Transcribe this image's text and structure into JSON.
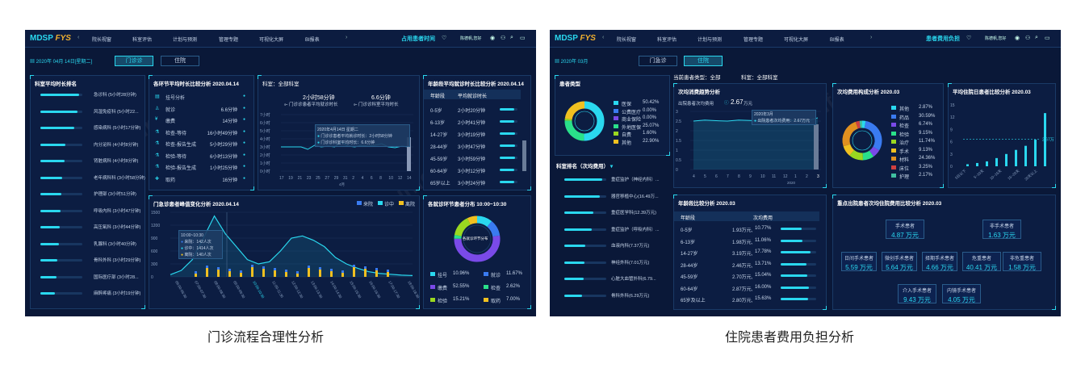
{
  "captions": {
    "left": "门诊流程合理性分析",
    "right": "住院患者费用负担分析"
  },
  "logo": {
    "main": "MDSP",
    "accent": "FYS"
  },
  "nav": [
    "院长视窗",
    "科室评估",
    "计划与预测",
    "管理专题",
    "可视化大屏",
    "BI报表"
  ],
  "left": {
    "top_right_title": "占用患者时间",
    "user_label": "陈德帆,您好",
    "date": "2020年 04月 14日[星期二]",
    "tabs": [
      "门诊诊",
      "住院"
    ],
    "dept_title": "科室平均时长排名",
    "depts": [
      {
        "name": "急诊科 (5小时28分钟)",
        "v": 0.92
      },
      {
        "name": "风湿免疫科 (5小时22...",
        "v": 0.88
      },
      {
        "name": "感染病科 (5小时17分钟)",
        "v": 0.8
      },
      {
        "name": "内分泌科 (4小时8分钟)",
        "v": 0.6
      },
      {
        "name": "肾脏病科 (4小时8分钟)",
        "v": 0.58
      },
      {
        "name": "老年病科科 (3小时58分钟)",
        "v": 0.52
      },
      {
        "name": "护理部 (3小时51分钟)",
        "v": 0.5
      },
      {
        "name": "呼吸内科 (3小时47分钟)",
        "v": 0.48
      },
      {
        "name": "高压氧科 (3小时44分钟)",
        "v": 0.46
      },
      {
        "name": "乳腺科 (3小时40分钟)",
        "v": 0.44
      },
      {
        "name": "骨科外科 (3小时29分钟)",
        "v": 0.4
      },
      {
        "name": "国际医疗部 (3小时28...",
        "v": 0.38
      },
      {
        "name": "麻醉疼痛 (3小时19分钟)",
        "v": 0.34
      }
    ],
    "step_title": "各环节平均时长比较分析 2020.04.14",
    "steps": [
      {
        "name": "挂号分析",
        "val": ""
      },
      {
        "name": "就诊",
        "val": "6.6分钟"
      },
      {
        "name": "缴费",
        "val": "14分钟"
      },
      {
        "name": "检查-等待",
        "val": "16小时49分钟"
      },
      {
        "name": "检查-报告生成",
        "val": "5小时29分钟"
      },
      {
        "name": "检验-等待",
        "val": "6小时13分钟"
      },
      {
        "name": "检验-报告生成",
        "val": "1小时25分钟"
      },
      {
        "name": "取药",
        "val": "16分钟"
      }
    ],
    "dept_label": "科室：全部科室",
    "kpi1": {
      "value": "2小时58分钟",
      "label": "门诊诊患者平均就诊时长"
    },
    "kpi2": {
      "value": "6.6分钟",
      "label": "门诊诊科室平均时长"
    },
    "tooltip1": {
      "date": "2020年4月14日 星期二",
      "l1": "门诊诊患者平均就诊时长：2小时58分钟",
      "l2": "门诊诊科室平均时长：6.6分钟"
    },
    "trend_yticks": [
      "7小时",
      "6小时",
      "5小时",
      "4小时",
      "3小时",
      "2小时",
      "1小时",
      "0小时"
    ],
    "trend_xticks": [
      "17",
      "19",
      "21",
      "23",
      "25",
      "27",
      "29",
      "31",
      "2",
      "4",
      "6",
      "8",
      "10",
      "12",
      "14"
    ],
    "trend_xsub": "4月",
    "age_title": "年龄段平均就诊时长比较分析 2020.04.14",
    "age_headers": [
      "年龄段",
      "平均就诊时长"
    ],
    "ages": [
      {
        "a": "0-5岁",
        "t": "2小时20分钟",
        "v": 0.8
      },
      {
        "a": "6-13岁",
        "t": "2小时41分钟",
        "v": 0.82
      },
      {
        "a": "14-27岁",
        "t": "3小时19分钟",
        "v": 0.85
      },
      {
        "a": "28-44岁",
        "t": "3小时47分钟",
        "v": 0.87
      },
      {
        "a": "45-59岁",
        "t": "3小时59分钟",
        "v": 0.88
      },
      {
        "a": "60-64岁",
        "t": "3小时12分钟",
        "v": 0.82
      },
      {
        "a": "65岁以上",
        "t": "3小时24分钟",
        "v": 0.83
      }
    ],
    "peak_title": "门急诊患者峰值变化分析 2020.04.14",
    "peak_legend": [
      "来院",
      "诊中",
      "离院"
    ],
    "peak_yticks": [
      "1500",
      "1200",
      "900",
      "600",
      "300",
      "0"
    ],
    "peak_xticks": [
      "06:00-06:30",
      "07:00-07:30",
      "08:00-08:30",
      "09:00-09:30",
      "10:00-10:30",
      "11:00-11:30",
      "12:00-12:30",
      "13:00-13:30",
      "14:00-14:30",
      "15:00-15:30",
      "16:00-16:30",
      "17:00-17:30",
      "18:00-18:30"
    ],
    "tooltip2": {
      "t": "10:00~10:30",
      "a": "来院：142人次",
      "b": "诊中：1414人次",
      "c": "离院：140人次"
    },
    "dist_title": "各就诊环节患者分布 10:00~10:30",
    "dist_center": "各就诊环节分布",
    "dist_items": [
      {
        "name": "挂号",
        "pct": "10.96%",
        "color": "#2ad8ef"
      },
      {
        "name": "就诊",
        "pct": "11.67%",
        "color": "#3a7bf0"
      },
      {
        "name": "缴费",
        "pct": "52.55%",
        "color": "#7a4ae8"
      },
      {
        "name": "检查",
        "pct": "2.62%",
        "color": "#2ae08a"
      },
      {
        "name": "检验",
        "pct": "15.21%",
        "color": "#9ad820"
      },
      {
        "name": "取药",
        "pct": "7.00%",
        "color": "#f0c020"
      }
    ]
  },
  "right": {
    "top_right_title": "患者费用负担",
    "user_label": "陈德帆,您好",
    "date": "2020年 03月",
    "tabs": [
      "门急诊",
      "住院"
    ],
    "ptype_title": "患者类型",
    "ptypes": [
      {
        "name": "医保",
        "pct": "50.42%",
        "color": "#2ad8ef"
      },
      {
        "name": "公费医疗",
        "pct": "0.00%",
        "color": "#3a7bf0"
      },
      {
        "name": "商业保险",
        "pct": "0.00%",
        "color": "#7a4ae8"
      },
      {
        "name": "外地医保",
        "pct": "25.07%",
        "color": "#2ae08a"
      },
      {
        "name": "自费",
        "pct": "1.60%",
        "color": "#9ad820"
      },
      {
        "name": "其他",
        "pct": "22.90%",
        "color": "#f0c020"
      }
    ],
    "cur_type": "当前患者类型：全部",
    "cur_dept": "科室：全部科室",
    "rank_title": "科室排名（次均费用）",
    "depts": [
      {
        "name": "重症监护（神经内科）...",
        "v": 0.9
      },
      {
        "name": "器官移植中心(16.49万...",
        "v": 0.85
      },
      {
        "name": "重症医学科(12.39万元)",
        "v": 0.7
      },
      {
        "name": "重症监护（呼吸内科）...",
        "v": 0.65
      },
      {
        "name": "血液内科(7.37万元)",
        "v": 0.5
      },
      {
        "name": "神经外科(7.01万元)",
        "v": 0.48
      },
      {
        "name": "心脏大血管外科(6.79...",
        "v": 0.46
      },
      {
        "name": "骨科外科(6.29万元)",
        "v": 0.43
      }
    ],
    "trend_title": "次均消费趋势分析",
    "trend_sub_label": "出院患者次均费用",
    "trend_value": "2.67",
    "trend_unit": "万元",
    "tooltip": {
      "d": "2020年3月",
      "l": "出院患者次均费用：2.67万元"
    },
    "trend_yticks": [
      "3",
      "2.5",
      "2",
      "1.5",
      "1",
      "0.5",
      "0"
    ],
    "trend_xticks": [
      "4",
      "5",
      "6",
      "7",
      "8",
      "9",
      "10",
      "11",
      "12",
      "1",
      "2",
      "3"
    ],
    "trend_xsub": "2020",
    "cost_title": "次均费用构成分析 2020.03",
    "costs": [
      {
        "name": "其他",
        "pct": "2.87%",
        "color": "#2ad8ef"
      },
      {
        "name": "药品",
        "pct": "30.59%",
        "color": "#3a7bf0"
      },
      {
        "name": "检查",
        "pct": "6.74%",
        "color": "#7a4ae8"
      },
      {
        "name": "检验",
        "pct": "9.15%",
        "color": "#2ae08a"
      },
      {
        "name": "治疗",
        "pct": "11.74%",
        "color": "#9ad820"
      },
      {
        "name": "手术",
        "pct": "9.13%",
        "color": "#f0c020"
      },
      {
        "name": "材料",
        "pct": "24.36%",
        "color": "#e09020"
      },
      {
        "name": "床位",
        "pct": "3.25%",
        "color": "#d04040"
      },
      {
        "name": "护理",
        "pct": "2.17%",
        "color": "#40c0a0"
      }
    ],
    "los_title": "平均住院日患者比较分析 2020.03",
    "los_yticks": [
      "15",
      "12",
      "9",
      "6",
      "3",
      "0"
    ],
    "los_xticks": [
      "5日以下",
      "5~10天",
      "10~15天",
      "15~20天",
      "20天以上"
    ],
    "los_ref": "2.67万",
    "age_title": "年龄段比较分析 2020.03",
    "age_headers": [
      "年龄段",
      "次均费用"
    ],
    "ages": [
      {
        "a": "0-5岁",
        "c": "1.93万元,",
        "p": "10.77%",
        "v": 0.6
      },
      {
        "a": "6-13岁",
        "c": "1.98万元,",
        "p": "11.06%",
        "v": 0.62
      },
      {
        "a": "14-27岁",
        "c": "3.19万元,",
        "p": "17.78%",
        "v": 0.85
      },
      {
        "a": "28-44岁",
        "c": "2.46万元,",
        "p": "13.71%",
        "v": 0.72
      },
      {
        "a": "45-59岁",
        "c": "2.70万元,",
        "p": "15.04%",
        "v": 0.76
      },
      {
        "a": "60-64岁",
        "c": "2.87万元,",
        "p": "16.00%",
        "v": 0.79
      },
      {
        "a": "65岁及以上",
        "c": "2.80万元,",
        "p": "15.63%",
        "v": 0.78
      }
    ],
    "key_title": "重点出院患者次均住院费用比较分析 2020.03",
    "cards": [
      {
        "name": "手术患者",
        "val": "4.87 万元"
      },
      {
        "name": "非手术患者",
        "val": "1.63 万元"
      },
      {
        "name": "日间手术患者",
        "val": "5.59 万元"
      },
      {
        "name": "微创手术患者",
        "val": "5.64 万元"
      },
      {
        "name": "择期手术患者",
        "val": "4.66 万元"
      },
      {
        "name": "危重患者",
        "val": "40.41 万元"
      },
      {
        "name": "非危重患者",
        "val": "1.58 万元"
      },
      {
        "name": "介入手术患者",
        "val": "9.43 万元"
      },
      {
        "name": "内镜手术患者",
        "val": "4.05 万元"
      }
    ]
  }
}
